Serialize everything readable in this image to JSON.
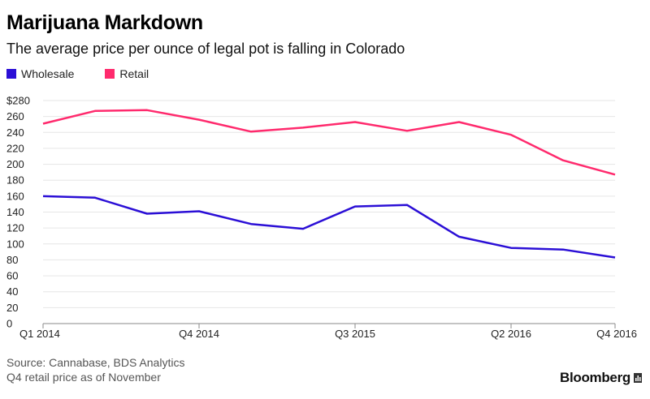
{
  "header": {
    "title": "Marijuana Markdown",
    "subtitle": "The average price per ounce of legal pot is falling in Colorado"
  },
  "legend": [
    {
      "name": "Wholesale",
      "color": "#2b0fd6"
    },
    {
      "name": "Retail",
      "color": "#ff2a6d"
    }
  ],
  "chart_data": {
    "type": "line",
    "title": "Marijuana Markdown",
    "subtitle": "The average price per ounce of legal pot is falling in Colorado",
    "x": [
      "Q1 2014",
      "Q2 2014",
      "Q3 2014",
      "Q4 2014",
      "Q1 2015",
      "Q2 2015",
      "Q3 2015",
      "Q4 2015",
      "Q1 2016",
      "Q2 2016",
      "Q3 2016",
      "Q4 2016"
    ],
    "x_tick_labels": [
      "Q1 2014",
      "Q4 2014",
      "Q3 2015",
      "Q2 2016",
      "Q4 2016"
    ],
    "series": [
      {
        "name": "Wholesale",
        "color": "#2b0fd6",
        "values": [
          160,
          158,
          138,
          141,
          125,
          119,
          147,
          149,
          109,
          95,
          93,
          83
        ]
      },
      {
        "name": "Retail",
        "color": "#ff2a6d",
        "values": [
          251,
          267,
          268,
          256,
          241,
          246,
          253,
          242,
          253,
          237,
          205,
          187
        ]
      }
    ],
    "ylim": [
      0,
      280
    ],
    "y_ticks": [
      0,
      20,
      40,
      60,
      80,
      100,
      120,
      140,
      160,
      180,
      200,
      220,
      240,
      260,
      280
    ],
    "y_tick_labels": [
      "0",
      "20",
      "40",
      "60",
      "80",
      "100",
      "120",
      "140",
      "160",
      "180",
      "200",
      "220",
      "240",
      "260",
      "$280"
    ],
    "grid": true,
    "legend_position": "top-left"
  },
  "footer": {
    "source": "Source: Cannabase, BDS Analytics",
    "note": "Q4 retail price as of November"
  },
  "brand": {
    "name": "Bloomberg"
  }
}
